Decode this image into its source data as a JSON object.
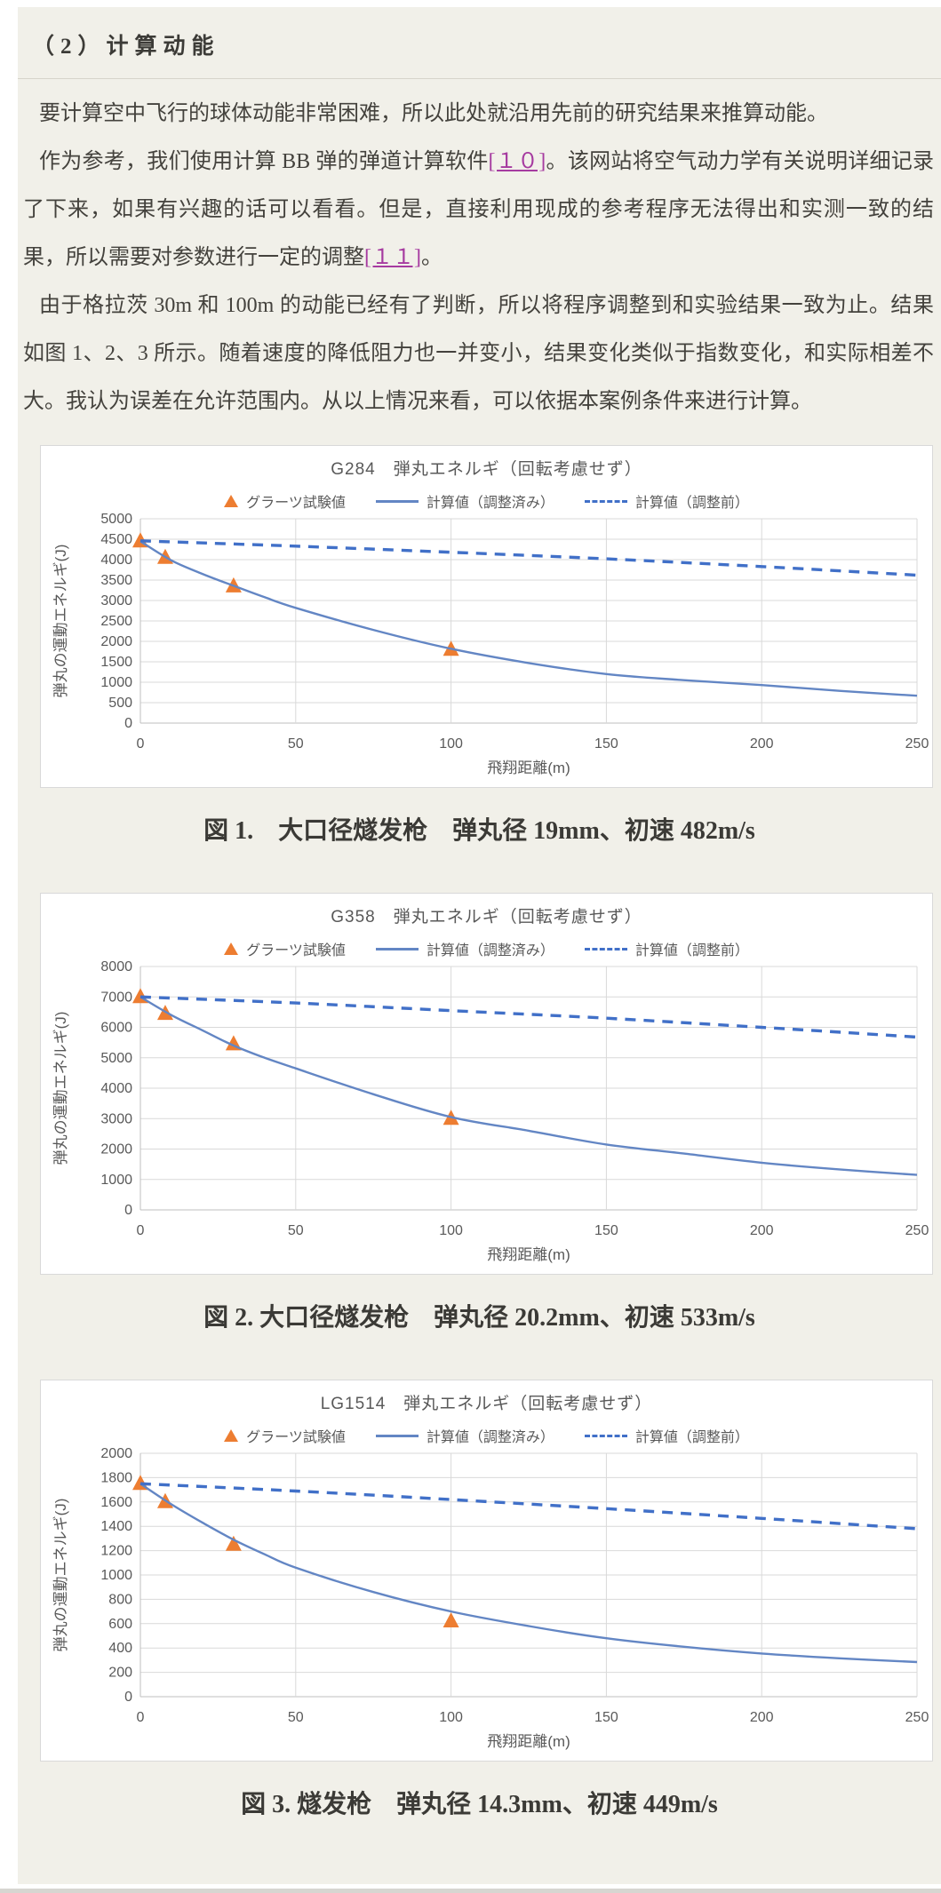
{
  "header": {
    "title": "（2）计算动能"
  },
  "paragraphs": [
    {
      "text": "要计算空中飞行的球体动能非常困难，所以此处就沿用先前的研究结果来推算动能。"
    },
    {
      "pre": "作为参考，我们使用计算 BB 弹的弹道计算软件",
      "link1": "[１０]",
      "mid": "。该网站将空气动力学有关说明详细记录了下来，如果有兴趣的话可以看看。但是，直接利用现成的参考程序无法得出和实测一致的结果，所以需要对参数进行一定的调整",
      "link2": "[１１]",
      "post": "。"
    },
    {
      "text": "由于格拉茨 30m 和 100m 的动能已经有了判断，所以将程序调整到和实验结果一致为止。结果如图 1、2、3 所示。随着速度的降低阻力也一并变小，结果变化类似于指数变化，和实际相差不大。我认为误差在允许范围内。从以上情况来看，可以依据本案例条件来进行计算。"
    }
  ],
  "figures": [
    {
      "caption": "図 1.　大口径燧发枪　弹丸径 19mm、初速 482m/s"
    },
    {
      "caption": "図 2. 大口径燧发枪　弹丸径 20.2mm、初速 533m/s"
    },
    {
      "caption": "図 3. 燧发枪　弹丸径 14.3mm、初速 449m/s"
    }
  ],
  "chart_data": [
    {
      "type": "line",
      "title": "G284　弾丸エネルギ（回転考慮せず）",
      "xlabel": "飛翔距離(m)",
      "ylabel": "弾丸の運動エネルギ(J)",
      "xlim": [
        0,
        250
      ],
      "xtick_step": 50,
      "ylim": [
        0,
        5000
      ],
      "ytick_step": 500,
      "grid": true,
      "legend_position": "top",
      "legend": [
        {
          "label": "グラーツ試験値",
          "marker": "triangle"
        },
        {
          "label": "計算値（調整済み）",
          "marker": "solid-line"
        },
        {
          "label": "計算値（調整前）",
          "marker": "dashed-line"
        }
      ],
      "series": [
        {
          "name": "グラーツ試験値",
          "type": "scatter",
          "points": [
            [
              0,
              4450
            ],
            [
              8,
              4050
            ],
            [
              30,
              3350
            ],
            [
              100,
              1800
            ]
          ]
        },
        {
          "name": "計算値（調整済み）",
          "type": "line",
          "style": "solid",
          "points": [
            [
              0,
              4450
            ],
            [
              10,
              3980
            ],
            [
              20,
              3650
            ],
            [
              30,
              3360
            ],
            [
              40,
              3080
            ],
            [
              50,
              2820
            ],
            [
              75,
              2280
            ],
            [
              100,
              1820
            ],
            [
              125,
              1470
            ],
            [
              150,
              1200
            ],
            [
              175,
              1050
            ],
            [
              200,
              930
            ],
            [
              225,
              790
            ],
            [
              250,
              670
            ]
          ]
        },
        {
          "name": "計算値（調整前）",
          "type": "line",
          "style": "dashed",
          "points": [
            [
              0,
              4460
            ],
            [
              50,
              4330
            ],
            [
              100,
              4180
            ],
            [
              150,
              4020
            ],
            [
              200,
              3830
            ],
            [
              250,
              3620
            ]
          ]
        }
      ]
    },
    {
      "type": "line",
      "title": "G358　弾丸エネルギ（回転考慮せず）",
      "xlabel": "飛翔距離(m)",
      "ylabel": "弾丸の運動エネルギ(J)",
      "xlim": [
        0,
        250
      ],
      "xtick_step": 50,
      "ylim": [
        0,
        8000
      ],
      "ytick_step": 1000,
      "grid": true,
      "legend_position": "top",
      "legend": [
        {
          "label": "グラーツ試験値",
          "marker": "triangle"
        },
        {
          "label": "計算値（調整済み）",
          "marker": "solid-line"
        },
        {
          "label": "計算値（調整前）",
          "marker": "dashed-line"
        }
      ],
      "series": [
        {
          "name": "グラーツ試験値",
          "type": "scatter",
          "points": [
            [
              0,
              7000
            ],
            [
              8,
              6450
            ],
            [
              30,
              5450
            ],
            [
              100,
              3000
            ]
          ]
        },
        {
          "name": "計算値（調整済み）",
          "type": "line",
          "style": "solid",
          "points": [
            [
              0,
              7000
            ],
            [
              10,
              6400
            ],
            [
              20,
              5900
            ],
            [
              30,
              5400
            ],
            [
              40,
              5000
            ],
            [
              50,
              4650
            ],
            [
              75,
              3800
            ],
            [
              100,
              3050
            ],
            [
              125,
              2600
            ],
            [
              150,
              2150
            ],
            [
              175,
              1850
            ],
            [
              200,
              1550
            ],
            [
              225,
              1330
            ],
            [
              250,
              1150
            ]
          ]
        },
        {
          "name": "計算値（調整前）",
          "type": "line",
          "style": "dashed",
          "points": [
            [
              0,
              7000
            ],
            [
              50,
              6800
            ],
            [
              100,
              6550
            ],
            [
              150,
              6300
            ],
            [
              200,
              6000
            ],
            [
              250,
              5680
            ]
          ]
        }
      ]
    },
    {
      "type": "line",
      "title": "LG1514　弾丸エネルギ（回転考慮せず）",
      "xlabel": "飛翔距離(m)",
      "ylabel": "弾丸の運動エネルギ(J)",
      "xlim": [
        0,
        250
      ],
      "xtick_step": 50,
      "ylim": [
        0,
        2000
      ],
      "ytick_step": 200,
      "grid": true,
      "legend_position": "top",
      "legend": [
        {
          "label": "グラーツ試験値",
          "marker": "triangle"
        },
        {
          "label": "計算値（調整済み）",
          "marker": "solid-line"
        },
        {
          "label": "計算値（調整前）",
          "marker": "dashed-line"
        }
      ],
      "series": [
        {
          "name": "グラーツ試験値",
          "type": "scatter",
          "points": [
            [
              0,
              1750
            ],
            [
              8,
              1600
            ],
            [
              30,
              1250
            ],
            [
              100,
              620
            ]
          ]
        },
        {
          "name": "計算値（調整済み）",
          "type": "line",
          "style": "solid",
          "points": [
            [
              0,
              1750
            ],
            [
              10,
              1580
            ],
            [
              20,
              1430
            ],
            [
              30,
              1290
            ],
            [
              40,
              1170
            ],
            [
              50,
              1060
            ],
            [
              75,
              860
            ],
            [
              100,
              700
            ],
            [
              125,
              580
            ],
            [
              150,
              480
            ],
            [
              175,
              410
            ],
            [
              200,
              355
            ],
            [
              225,
              315
            ],
            [
              250,
              285
            ]
          ]
        },
        {
          "name": "計算値（調整前）",
          "type": "line",
          "style": "dashed",
          "points": [
            [
              0,
              1750
            ],
            [
              50,
              1690
            ],
            [
              100,
              1620
            ],
            [
              150,
              1545
            ],
            [
              200,
              1465
            ],
            [
              250,
              1380
            ]
          ]
        }
      ]
    }
  ],
  "colors": {
    "page_background": "#f1f0e9",
    "marker_orange": "#ED7D31",
    "line_solid_blue": "#6386C4",
    "line_dashed_blue": "#4170C8",
    "link_purple": "#a63ba0",
    "chart_text_gray": "#595959",
    "gridline_gray": "#D9D9D9",
    "axis_gray": "#BFBFBF"
  }
}
